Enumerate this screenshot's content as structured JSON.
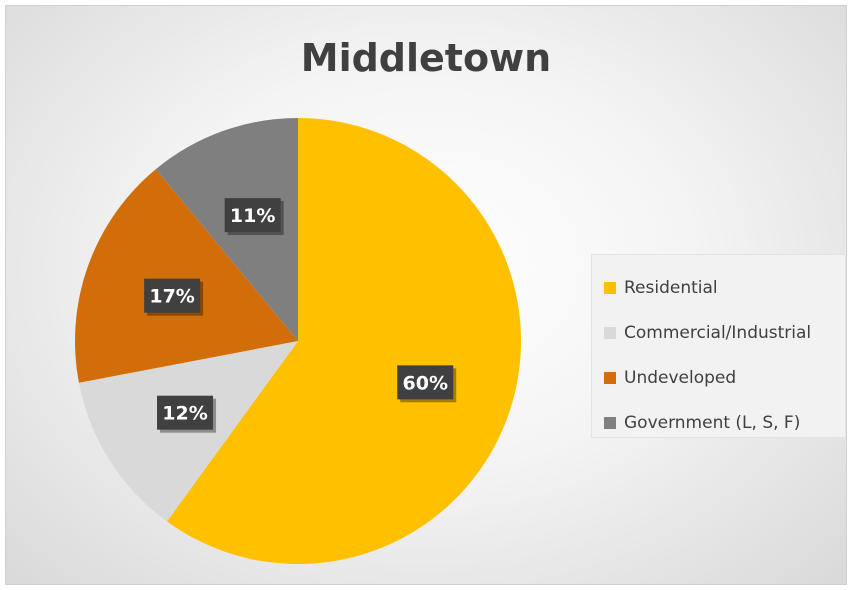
{
  "chart_data": {
    "type": "pie",
    "title": "Middletown",
    "categories": [
      "Residential",
      "Commercial/Industrial",
      "Undeveloped",
      "Government (L, S, F)"
    ],
    "values": [
      60,
      12,
      17,
      11
    ],
    "labels": [
      "60%",
      "12%",
      "17%",
      "11%"
    ],
    "colors": [
      "#ffc000",
      "#d9d9d9",
      "#d16e0a",
      "#7f7f7f"
    ],
    "start_angle_deg": 0,
    "direction": "clockwise",
    "legend_position": "right"
  }
}
